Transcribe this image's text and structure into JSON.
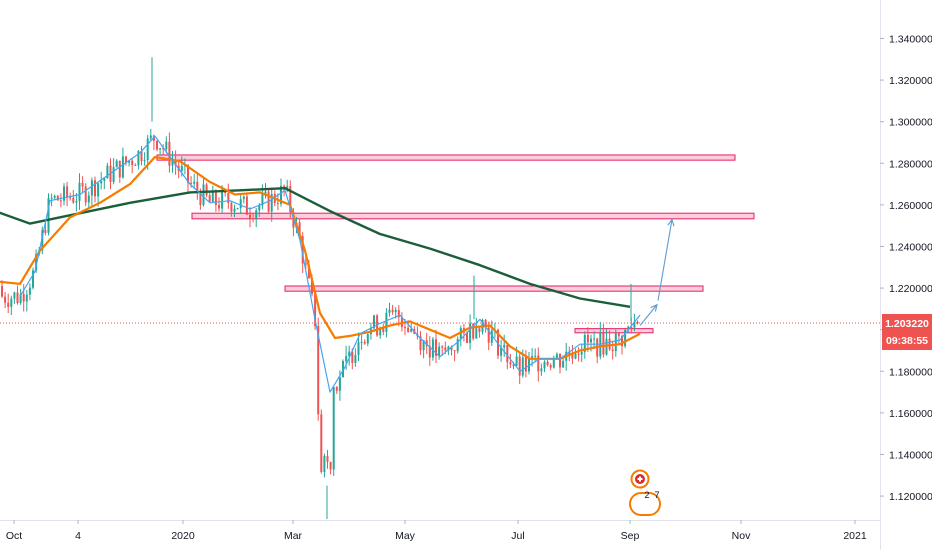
{
  "chart_data": {
    "type": "candlestick",
    "price_axis": {
      "ticks": [
        "1.340000",
        "1.320000",
        "1.300000",
        "1.280000",
        "1.260000",
        "1.240000",
        "1.220000",
        "1.200000",
        "1.180000",
        "1.160000",
        "1.140000",
        "1.120000"
      ],
      "ylim": [
        1.1085,
        1.3585
      ]
    },
    "time_axis": {
      "ticks": [
        "Oct",
        "4",
        "2020",
        "Mar",
        "May",
        "Jul",
        "Sep",
        "Nov",
        "2021"
      ]
    },
    "current_price": {
      "label": "1.203220",
      "value": 1.20322,
      "color": "#ef5350"
    },
    "countdown": {
      "label": "09:38:55"
    },
    "candle_colors": {
      "up": "#26a69a",
      "down": "#ef5350"
    },
    "series": [
      {
        "style": "moving-average",
        "color": "#1b5e3a",
        "points": [
          [
            -5,
            1.257
          ],
          [
            30,
            1.251
          ],
          [
            80,
            1.256
          ],
          [
            130,
            1.261
          ],
          [
            190,
            1.266
          ],
          [
            240,
            1.267
          ],
          [
            285,
            1.268
          ],
          [
            330,
            1.257
          ],
          [
            380,
            1.246
          ],
          [
            430,
            1.239
          ],
          [
            480,
            1.231
          ],
          [
            530,
            1.222
          ],
          [
            580,
            1.215
          ],
          [
            630,
            1.211
          ]
        ]
      },
      {
        "style": "moving-average",
        "color": "#f57c00",
        "points": [
          [
            0,
            1.223
          ],
          [
            20,
            1.222
          ],
          [
            40,
            1.238
          ],
          [
            70,
            1.254
          ],
          [
            100,
            1.261
          ],
          [
            130,
            1.27
          ],
          [
            155,
            1.283
          ],
          [
            180,
            1.281
          ],
          [
            210,
            1.271
          ],
          [
            235,
            1.265
          ],
          [
            260,
            1.266
          ],
          [
            290,
            1.26
          ],
          [
            305,
            1.238
          ],
          [
            320,
            1.208
          ],
          [
            335,
            1.196
          ],
          [
            350,
            1.197
          ],
          [
            370,
            1.199
          ],
          [
            390,
            1.202
          ],
          [
            410,
            1.204
          ],
          [
            430,
            1.2
          ],
          [
            450,
            1.196
          ],
          [
            470,
            1.201
          ],
          [
            490,
            1.202
          ],
          [
            510,
            1.192
          ],
          [
            530,
            1.186
          ],
          [
            560,
            1.186
          ],
          [
            580,
            1.19
          ],
          [
            600,
            1.192
          ],
          [
            620,
            1.193
          ],
          [
            640,
            1.198
          ]
        ]
      },
      {
        "style": "moving-average",
        "color": "#42a5f5",
        "points": [
          [
            20,
            1.216
          ],
          [
            35,
            1.228
          ],
          [
            50,
            1.262
          ],
          [
            80,
            1.265
          ],
          [
            110,
            1.275
          ],
          [
            140,
            1.285
          ],
          [
            155,
            1.293
          ],
          [
            170,
            1.283
          ],
          [
            190,
            1.27
          ],
          [
            210,
            1.261
          ],
          [
            230,
            1.262
          ],
          [
            250,
            1.258
          ],
          [
            270,
            1.262
          ],
          [
            285,
            1.267
          ],
          [
            300,
            1.243
          ],
          [
            315,
            1.205
          ],
          [
            330,
            1.17
          ],
          [
            345,
            1.182
          ],
          [
            360,
            1.198
          ],
          [
            380,
            1.203
          ],
          [
            400,
            1.207
          ],
          [
            420,
            1.196
          ],
          [
            440,
            1.187
          ],
          [
            460,
            1.195
          ],
          [
            480,
            1.205
          ],
          [
            500,
            1.192
          ],
          [
            520,
            1.18
          ],
          [
            540,
            1.186
          ],
          [
            560,
            1.186
          ],
          [
            580,
            1.193
          ],
          [
            600,
            1.193
          ],
          [
            620,
            1.195
          ],
          [
            640,
            1.207
          ]
        ]
      }
    ],
    "zones": [
      {
        "x_start": 157,
        "x_end": 735,
        "top": 1.284,
        "bottom": 1.2815
      },
      {
        "x_start": 192,
        "x_end": 754,
        "top": 1.256,
        "bottom": 1.2533
      },
      {
        "x_start": 285,
        "x_end": 703,
        "top": 1.221,
        "bottom": 1.2185
      },
      {
        "x_start": 575,
        "x_end": 653,
        "top": 1.2005,
        "bottom": 1.1985
      }
    ],
    "projection_arrows": [
      {
        "from": [
          658,
          1.214
        ],
        "to": [
          672,
          1.253
        ]
      },
      {
        "from": [
          640,
          1.202
        ],
        "to": [
          657,
          1.212
        ]
      }
    ],
    "event_badges": [
      {
        "kind": "flag-icon",
        "color": "#f57c00"
      },
      {
        "label": "2",
        "color": "#f57c00"
      },
      {
        "label": "7",
        "color": "#f57c00"
      }
    ],
    "grid": false,
    "legend": "none"
  }
}
